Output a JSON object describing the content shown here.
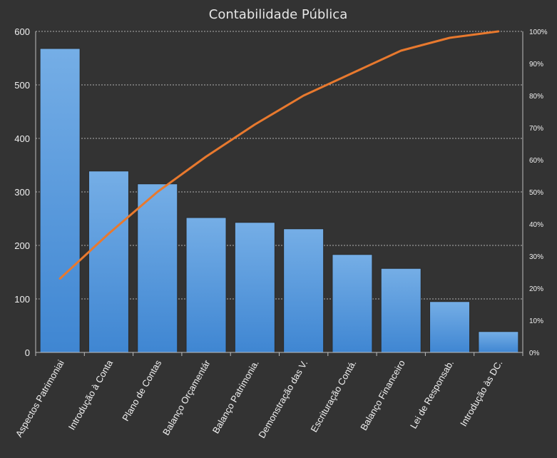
{
  "chart_data": {
    "type": "bar",
    "title": "Contabilidade Pública",
    "xlabel": "",
    "ylabel": "",
    "categories": [
      "Aspectos Patrimoniai",
      "Introdução à Conta",
      "Plano de Contas",
      "Balanço Orçamentár",
      "Balanço Patrimonia.",
      "Demonstração das V.",
      "Escrituração Contá.",
      "Balanço Financeiro",
      "Lei de Responsab.",
      "Introdução às DC."
    ],
    "series": [
      {
        "type": "bar",
        "values": [
          568,
          339,
          315,
          252,
          243,
          231,
          183,
          157,
          95,
          39
        ],
        "axis": "left"
      },
      {
        "type": "line",
        "values": [
          23,
          37,
          50,
          61,
          71,
          80,
          87,
          94,
          98,
          100
        ],
        "axis": "right"
      }
    ],
    "ylim": [
      0,
      600
    ],
    "yticks": [
      0,
      100,
      200,
      300,
      400,
      500,
      600
    ],
    "y2lim": [
      0,
      100
    ],
    "y2ticks": [
      "0%",
      "10%",
      "20%",
      "30%",
      "40%",
      "50%",
      "60%",
      "70%",
      "80%",
      "90%",
      "100%"
    ],
    "grid": true,
    "colors": {
      "bar": "#4a90d9",
      "line": "#e8792e",
      "background": "#333333",
      "grid": "#cfcfcf"
    }
  }
}
